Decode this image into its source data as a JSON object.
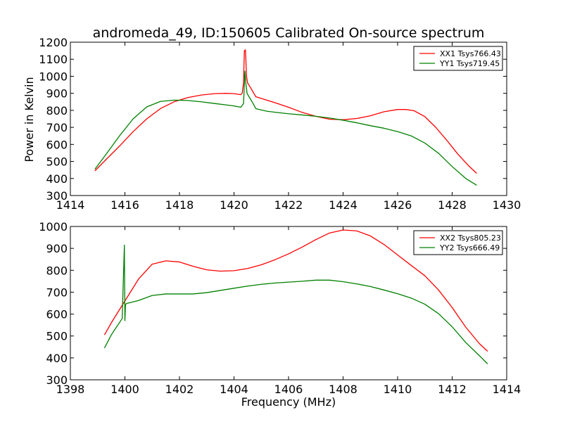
{
  "chart_data": [
    {
      "type": "line",
      "title": "andromeda_49, ID:150605 Calibrated On-source spectrum",
      "xlabel": "",
      "ylabel": "Power in Kelvin",
      "xlim": [
        1414,
        1430
      ],
      "ylim": [
        300,
        1200
      ],
      "xticks": [
        1414,
        1416,
        1418,
        1420,
        1422,
        1424,
        1426,
        1428,
        1430
      ],
      "yticks": [
        300,
        400,
        500,
        600,
        700,
        800,
        900,
        1000,
        1100,
        1200
      ],
      "grid": false,
      "legend_position": "top-right",
      "series": [
        {
          "name": "XX1 Tsys766.43",
          "color": "#ff0000",
          "x": [
            1414.9,
            1415.3,
            1415.8,
            1416.3,
            1416.8,
            1417.3,
            1417.8,
            1418.3,
            1418.8,
            1419.3,
            1419.7,
            1420.0,
            1420.25,
            1420.3,
            1420.35,
            1420.38,
            1420.42,
            1420.46,
            1420.5,
            1420.6,
            1420.8,
            1421.2,
            1421.6,
            1422.0,
            1422.5,
            1423.0,
            1423.5,
            1424.0,
            1424.5,
            1425.0,
            1425.5,
            1426.0,
            1426.3,
            1426.6,
            1427.0,
            1427.4,
            1427.8,
            1428.2,
            1428.6,
            1428.9
          ],
          "values": [
            445,
            510,
            590,
            675,
            750,
            810,
            850,
            875,
            890,
            898,
            900,
            898,
            892,
            900,
            960,
            1150,
            1155,
            1000,
            960,
            935,
            880,
            860,
            840,
            818,
            788,
            765,
            748,
            745,
            752,
            768,
            792,
            805,
            805,
            798,
            763,
            700,
            625,
            545,
            475,
            430
          ]
        },
        {
          "name": "YY1 Tsys719.45",
          "color": "#008000",
          "x": [
            1414.9,
            1415.3,
            1415.8,
            1416.3,
            1416.8,
            1417.3,
            1417.8,
            1418.3,
            1418.8,
            1419.3,
            1419.7,
            1420.0,
            1420.25,
            1420.35,
            1420.4,
            1420.44,
            1420.48,
            1420.55,
            1420.7,
            1420.8,
            1421.2,
            1421.6,
            1422.0,
            1422.5,
            1423.0,
            1423.5,
            1424.0,
            1424.5,
            1425.0,
            1425.5,
            1426.0,
            1426.5,
            1427.0,
            1427.5,
            1428.0,
            1428.5,
            1428.9
          ],
          "values": [
            455,
            540,
            650,
            750,
            820,
            852,
            860,
            858,
            850,
            840,
            832,
            826,
            818,
            840,
            1030,
            950,
            900,
            880,
            840,
            810,
            795,
            787,
            780,
            773,
            765,
            755,
            742,
            727,
            710,
            695,
            675,
            650,
            608,
            548,
            470,
            400,
            360
          ]
        }
      ]
    },
    {
      "type": "line",
      "title": "",
      "xlabel": "Frequency (MHz)",
      "ylabel": "",
      "xlim": [
        1398,
        1414
      ],
      "ylim": [
        300,
        1000
      ],
      "xticks": [
        1398,
        1400,
        1402,
        1404,
        1406,
        1408,
        1410,
        1412,
        1414
      ],
      "yticks": [
        300,
        400,
        500,
        600,
        700,
        800,
        900,
        1000
      ],
      "grid": false,
      "legend_position": "top-right",
      "series": [
        {
          "name": "XX2 Tsys805.23",
          "color": "#ff0000",
          "x": [
            1399.25,
            1399.5,
            1400.0,
            1400.5,
            1401.0,
            1401.5,
            1402.0,
            1402.5,
            1403.0,
            1403.5,
            1404.0,
            1404.5,
            1405.0,
            1405.5,
            1406.0,
            1406.5,
            1407.0,
            1407.5,
            1408.0,
            1408.5,
            1409.0,
            1409.5,
            1410.0,
            1410.5,
            1411.0,
            1411.5,
            1412.0,
            1412.5,
            1413.0,
            1413.3
          ],
          "values": [
            505,
            560,
            660,
            760,
            828,
            843,
            838,
            818,
            802,
            796,
            798,
            808,
            825,
            848,
            875,
            906,
            940,
            970,
            984,
            980,
            957,
            918,
            870,
            822,
            775,
            710,
            630,
            540,
            465,
            430
          ]
        },
        {
          "name": "YY2 Tsys666.49",
          "color": "#008000",
          "x": [
            1399.25,
            1399.5,
            1399.9,
            1399.98,
            1400.0,
            1400.02,
            1400.05,
            1400.5,
            1401.0,
            1401.5,
            1402.0,
            1402.5,
            1403.0,
            1403.5,
            1404.0,
            1404.5,
            1405.0,
            1405.5,
            1406.0,
            1406.5,
            1407.0,
            1407.5,
            1408.0,
            1408.5,
            1409.0,
            1409.5,
            1410.0,
            1410.5,
            1411.0,
            1411.5,
            1412.0,
            1412.5,
            1413.0,
            1413.3
          ],
          "values": [
            445,
            505,
            580,
            915,
            570,
            640,
            648,
            662,
            685,
            692,
            692,
            692,
            698,
            708,
            718,
            728,
            736,
            742,
            746,
            750,
            755,
            755,
            748,
            738,
            726,
            710,
            693,
            673,
            645,
            602,
            542,
            470,
            410,
            373
          ]
        }
      ]
    }
  ]
}
